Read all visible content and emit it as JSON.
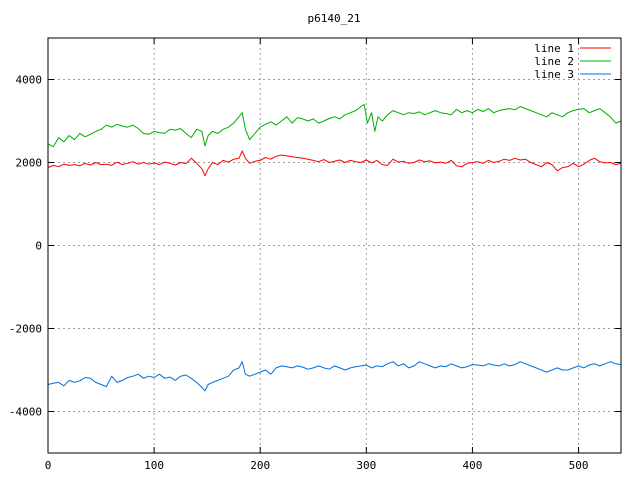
{
  "chart_data": {
    "type": "line",
    "title": "p6140_21",
    "xlabel": "",
    "ylabel": "",
    "xlim": [
      0,
      540
    ],
    "ylim": [
      -5000,
      5000
    ],
    "x_ticks": [
      0,
      100,
      200,
      300,
      400,
      500
    ],
    "y_ticks": [
      -4000,
      -2000,
      0,
      2000,
      4000
    ],
    "grid": true,
    "legend_position": "top-right",
    "series": [
      {
        "name": "line 1",
        "color": "#ff0000",
        "x": [
          0,
          5,
          10,
          15,
          20,
          25,
          30,
          35,
          40,
          45,
          50,
          55,
          60,
          65,
          70,
          75,
          80,
          85,
          90,
          95,
          100,
          105,
          110,
          115,
          120,
          125,
          130,
          135,
          140,
          145,
          148,
          151,
          155,
          160,
          165,
          170,
          175,
          180,
          183,
          186,
          190,
          195,
          200,
          205,
          210,
          215,
          220,
          225,
          230,
          235,
          240,
          245,
          250,
          255,
          260,
          265,
          270,
          275,
          280,
          285,
          290,
          295,
          300,
          305,
          310,
          315,
          320,
          325,
          330,
          335,
          340,
          345,
          350,
          355,
          360,
          365,
          370,
          375,
          380,
          385,
          390,
          395,
          400,
          405,
          410,
          415,
          420,
          425,
          430,
          435,
          440,
          445,
          450,
          455,
          460,
          465,
          470,
          475,
          480,
          485,
          490,
          495,
          500,
          505,
          510,
          515,
          520,
          525,
          530,
          535,
          540
        ],
        "y": [
          1880,
          1930,
          1900,
          1960,
          1930,
          1950,
          1920,
          1980,
          1940,
          2000,
          1950,
          1960,
          1930,
          2010,
          1950,
          1980,
          2020,
          1960,
          2000,
          1960,
          1990,
          1950,
          2010,
          1980,
          1940,
          2000,
          1970,
          2100,
          1980,
          1850,
          1680,
          1850,
          2000,
          1950,
          2050,
          2010,
          2080,
          2100,
          2280,
          2100,
          1980,
          2030,
          2050,
          2120,
          2080,
          2150,
          2180,
          2160,
          2140,
          2120,
          2100,
          2080,
          2050,
          2020,
          2070,
          2000,
          2030,
          2060,
          2000,
          2050,
          2020,
          2000,
          2060,
          1990,
          2050,
          1950,
          1930,
          2080,
          2010,
          2030,
          1980,
          2000,
          2060,
          2020,
          2040,
          1990,
          2010,
          1980,
          2050,
          1920,
          1900,
          1980,
          2000,
          2020,
          1980,
          2050,
          2000,
          2030,
          2080,
          2050,
          2100,
          2060,
          2080,
          2000,
          1950,
          1900,
          2000,
          1950,
          1800,
          1880,
          1900,
          1980,
          1900,
          1960,
          2050,
          2100,
          2020,
          1990,
          2000,
          1950,
          1980
        ]
      },
      {
        "name": "line 2",
        "color": "#00b000",
        "x": [
          0,
          5,
          10,
          15,
          20,
          25,
          30,
          35,
          40,
          45,
          50,
          55,
          60,
          65,
          70,
          75,
          80,
          85,
          90,
          95,
          100,
          105,
          110,
          115,
          120,
          125,
          130,
          135,
          140,
          145,
          148,
          151,
          155,
          160,
          165,
          170,
          175,
          180,
          183,
          186,
          190,
          195,
          200,
          205,
          210,
          215,
          220,
          225,
          230,
          235,
          240,
          245,
          250,
          255,
          260,
          265,
          270,
          275,
          280,
          285,
          290,
          295,
          298,
          301,
          305,
          308,
          311,
          315,
          320,
          325,
          330,
          335,
          340,
          345,
          350,
          355,
          360,
          365,
          370,
          375,
          380,
          385,
          390,
          395,
          400,
          405,
          410,
          415,
          420,
          425,
          430,
          435,
          440,
          445,
          450,
          455,
          460,
          465,
          470,
          475,
          480,
          485,
          490,
          495,
          500,
          505,
          510,
          515,
          520,
          525,
          530,
          535,
          540
        ],
        "y": [
          2450,
          2380,
          2600,
          2500,
          2650,
          2550,
          2700,
          2620,
          2680,
          2750,
          2800,
          2900,
          2850,
          2920,
          2880,
          2850,
          2900,
          2820,
          2700,
          2680,
          2750,
          2720,
          2700,
          2800,
          2780,
          2820,
          2700,
          2600,
          2800,
          2750,
          2400,
          2650,
          2750,
          2700,
          2800,
          2850,
          2950,
          3100,
          3200,
          2800,
          2550,
          2700,
          2850,
          2920,
          2980,
          2900,
          3000,
          3100,
          2950,
          3080,
          3050,
          3000,
          3050,
          2950,
          3000,
          3060,
          3100,
          3050,
          3150,
          3200,
          3250,
          3350,
          3400,
          2950,
          3200,
          2750,
          3100,
          3000,
          3150,
          3250,
          3200,
          3150,
          3200,
          3180,
          3220,
          3150,
          3200,
          3250,
          3200,
          3180,
          3150,
          3280,
          3200,
          3250,
          3200,
          3280,
          3230,
          3300,
          3200,
          3250,
          3280,
          3300,
          3270,
          3350,
          3300,
          3250,
          3200,
          3150,
          3100,
          3200,
          3150,
          3100,
          3200,
          3250,
          3280,
          3300,
          3200,
          3250,
          3300,
          3200,
          3100,
          2950,
          3000
        ]
      },
      {
        "name": "line 3",
        "color": "#0070e0",
        "x": [
          0,
          5,
          10,
          15,
          20,
          25,
          30,
          35,
          40,
          45,
          50,
          55,
          60,
          65,
          70,
          75,
          80,
          85,
          90,
          95,
          100,
          105,
          110,
          115,
          120,
          125,
          130,
          135,
          140,
          145,
          148,
          151,
          155,
          160,
          165,
          170,
          175,
          180,
          183,
          186,
          190,
          195,
          200,
          205,
          210,
          215,
          220,
          225,
          230,
          235,
          240,
          245,
          250,
          255,
          260,
          265,
          270,
          275,
          280,
          285,
          290,
          295,
          300,
          305,
          310,
          315,
          320,
          325,
          330,
          335,
          340,
          345,
          350,
          355,
          360,
          365,
          370,
          375,
          380,
          385,
          390,
          395,
          400,
          405,
          410,
          415,
          420,
          425,
          430,
          435,
          440,
          445,
          450,
          455,
          460,
          465,
          470,
          475,
          480,
          485,
          490,
          495,
          500,
          505,
          510,
          515,
          520,
          525,
          530,
          535,
          540
        ],
        "y": [
          -3350,
          -3320,
          -3300,
          -3380,
          -3250,
          -3300,
          -3260,
          -3180,
          -3200,
          -3300,
          -3350,
          -3400,
          -3150,
          -3300,
          -3250,
          -3180,
          -3150,
          -3100,
          -3200,
          -3150,
          -3180,
          -3100,
          -3200,
          -3170,
          -3250,
          -3150,
          -3120,
          -3200,
          -3300,
          -3420,
          -3500,
          -3350,
          -3300,
          -3250,
          -3200,
          -3150,
          -3000,
          -2950,
          -2800,
          -3100,
          -3150,
          -3100,
          -3050,
          -3000,
          -3100,
          -2950,
          -2900,
          -2920,
          -2950,
          -2900,
          -2930,
          -2980,
          -2950,
          -2900,
          -2950,
          -2980,
          -2900,
          -2950,
          -3000,
          -2950,
          -2920,
          -2900,
          -2880,
          -2950,
          -2900,
          -2920,
          -2850,
          -2800,
          -2900,
          -2850,
          -2950,
          -2900,
          -2800,
          -2850,
          -2900,
          -2950,
          -2900,
          -2920,
          -2850,
          -2900,
          -2950,
          -2920,
          -2870,
          -2880,
          -2900,
          -2850,
          -2880,
          -2900,
          -2850,
          -2900,
          -2870,
          -2800,
          -2850,
          -2900,
          -2950,
          -3000,
          -3050,
          -3000,
          -2950,
          -3000,
          -3000,
          -2950,
          -2900,
          -2950,
          -2880,
          -2850,
          -2900,
          -2850,
          -2800,
          -2850,
          -2870
        ]
      }
    ]
  }
}
